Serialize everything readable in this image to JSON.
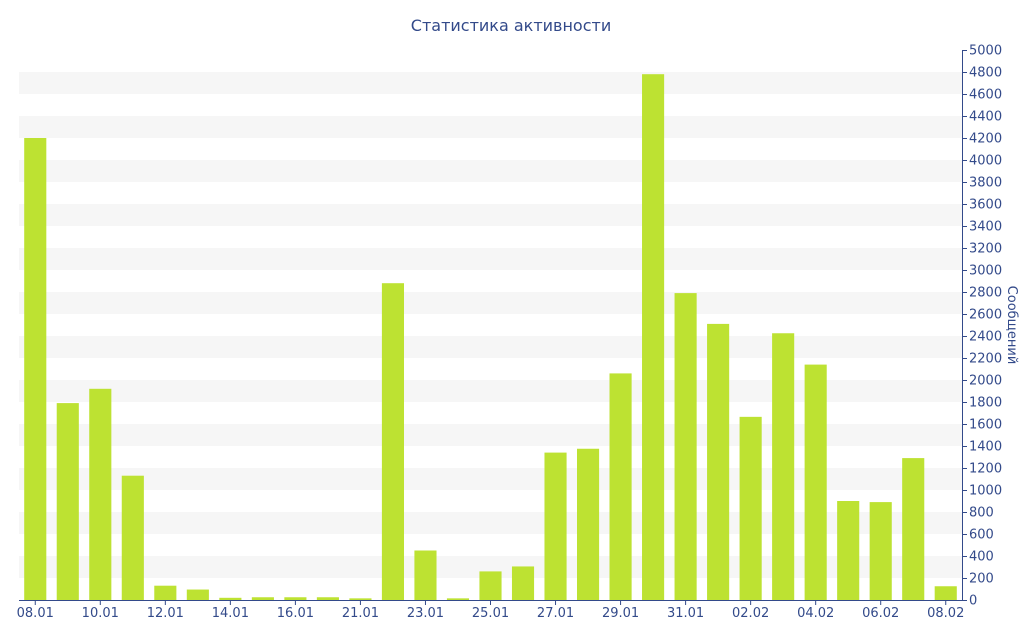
{
  "chart_data": {
    "type": "bar",
    "title": "Статистика активности",
    "xlabel": "",
    "ylabel": "Сообщений",
    "ylim": [
      0,
      5000
    ],
    "y_tick_step": 200,
    "grid": "horizontal alternating bands",
    "legend": "none",
    "colors": {
      "bar": "#bde232",
      "band": "#f6f6f6",
      "axis": "#334a8a",
      "text": "#334a8a"
    },
    "categories": [
      "08.01",
      "09.01",
      "10.01",
      "11.01",
      "12.01",
      "13.01",
      "14.01",
      "15.01",
      "16.01",
      "17.01",
      "21.01",
      "22.01",
      "23.01",
      "24.01",
      "25.01",
      "26.01",
      "27.01",
      "28.01",
      "29.01",
      "30.01",
      "31.01",
      "01.02",
      "02.02",
      "03.02",
      "04.02",
      "05.02",
      "06.02",
      "07.02",
      "08.02"
    ],
    "x_tick_labels": [
      "08.01",
      "10.01",
      "12.01",
      "14.01",
      "16.01",
      "21.01",
      "23.01",
      "25.01",
      "27.01",
      "29.01",
      "31.01",
      "02.02",
      "04.02",
      "06.02",
      "08.02"
    ],
    "values": [
      4200,
      1790,
      1920,
      1130,
      130,
      95,
      20,
      25,
      25,
      25,
      15,
      2880,
      450,
      15,
      260,
      305,
      1340,
      1375,
      2060,
      4780,
      2790,
      2510,
      1665,
      2425,
      2140,
      900,
      890,
      1290,
      125
    ]
  }
}
